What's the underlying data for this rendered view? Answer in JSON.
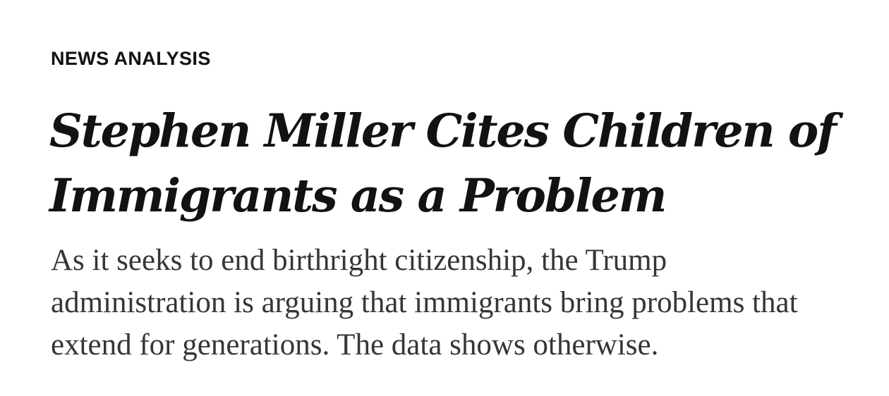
{
  "article": {
    "kicker": "NEWS ANALYSIS",
    "headline_lines": [
      "Stephen Miller Cites Children of",
      "Immigrants as a Problem"
    ],
    "summary_lines": [
      "As it seeks to end birthright citizenship, the Trump",
      "administration is arguing that immigrants bring problems that",
      "extend for generations. The data shows otherwise."
    ]
  }
}
